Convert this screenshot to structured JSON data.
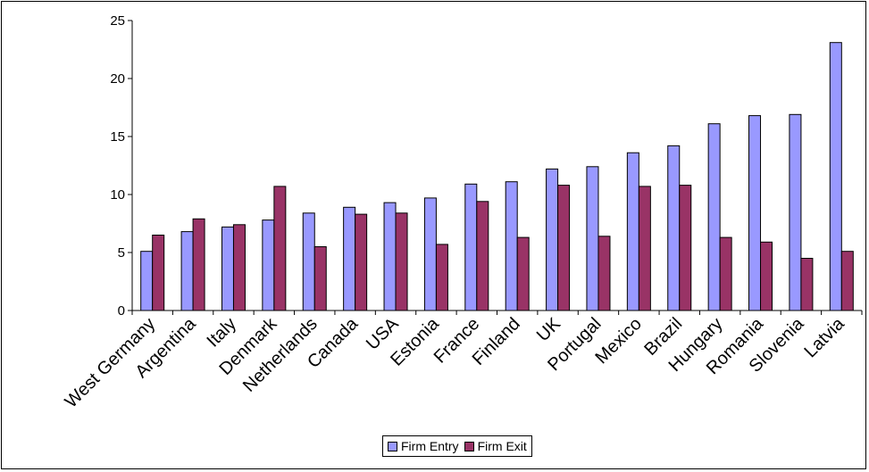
{
  "chart_data": {
    "type": "bar",
    "categories": [
      "West Germany",
      "Argentina",
      "Italy",
      "Denmark",
      "Netherlands",
      "Canada",
      "USA",
      "Estonia",
      "France",
      "Finland",
      "UK",
      "Portugal",
      "Mexico",
      "Brazil",
      "Hungary",
      "Romania",
      "Slovenia",
      "Latvia"
    ],
    "series": [
      {
        "name": "Firm Entry",
        "color": "#9999ff",
        "values": [
          5.1,
          6.8,
          7.2,
          7.8,
          8.4,
          8.9,
          9.3,
          9.7,
          10.9,
          11.1,
          12.2,
          12.4,
          13.6,
          14.2,
          16.1,
          16.8,
          16.9,
          23.1
        ]
      },
      {
        "name": "Firm Exit",
        "color": "#993366",
        "values": [
          6.5,
          7.9,
          7.4,
          10.7,
          5.5,
          8.3,
          8.4,
          5.7,
          9.4,
          6.3,
          10.8,
          6.4,
          10.7,
          10.8,
          6.3,
          5.9,
          4.5,
          5.1
        ]
      }
    ],
    "ylim": [
      0,
      25
    ],
    "yticks": [
      0,
      5,
      10,
      15,
      20,
      25
    ],
    "legend_position": "bottom",
    "grid": false
  }
}
